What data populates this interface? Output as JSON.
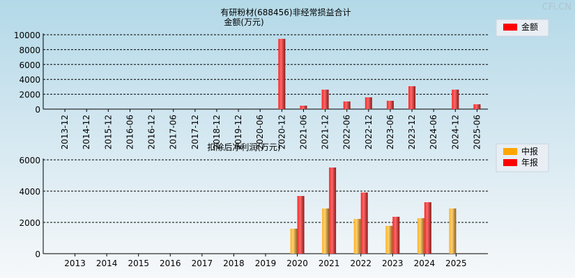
{
  "watermark": "CFi.CN",
  "chart_data": [
    {
      "type": "bar",
      "title": "有研粉材(688456)非经常损益合计",
      "ylabel": "金额(万元)",
      "categories": [
        "2013-12",
        "2014-12",
        "2015-12",
        "2016-06",
        "2016-12",
        "2017-06",
        "2017-12",
        "2018-12",
        "2019-12",
        "2020-06",
        "2020-12",
        "2021-06",
        "2021-12",
        "2022-06",
        "2022-12",
        "2023-06",
        "2023-12",
        "2024-06",
        "2024-12",
        "2025-06"
      ],
      "series": [
        {
          "name": "金额",
          "color": "#ff0000",
          "values": [
            0,
            0,
            0,
            0,
            0,
            0,
            0,
            0,
            0,
            0,
            9450,
            470,
            2620,
            1030,
            1590,
            1120,
            3080,
            0,
            2620,
            650
          ]
        }
      ],
      "ylim": [
        0,
        10000
      ],
      "yticks": [
        0,
        2000,
        4000,
        6000,
        8000,
        10000
      ],
      "grid": true,
      "legend": "top-right"
    },
    {
      "type": "bar",
      "title": "扣除后净利润(万元)",
      "categories": [
        "2013",
        "2014",
        "2015",
        "2016",
        "2017",
        "2018",
        "2019",
        "2020",
        "2021",
        "2022",
        "2023",
        "2024",
        "2025"
      ],
      "series": [
        {
          "name": "中报",
          "color": "#ffa500",
          "values": [
            null,
            null,
            null,
            null,
            null,
            null,
            null,
            1600,
            2890,
            2220,
            1780,
            2270,
            2890
          ]
        },
        {
          "name": "年报",
          "color": "#ff0000",
          "values": [
            null,
            null,
            null,
            null,
            null,
            null,
            null,
            3690,
            5510,
            3910,
            2360,
            3290,
            null
          ]
        }
      ],
      "ylim": [
        0,
        6000
      ],
      "yticks": [
        0,
        2000,
        4000,
        6000
      ],
      "grid": true,
      "legend": "top-right"
    }
  ]
}
